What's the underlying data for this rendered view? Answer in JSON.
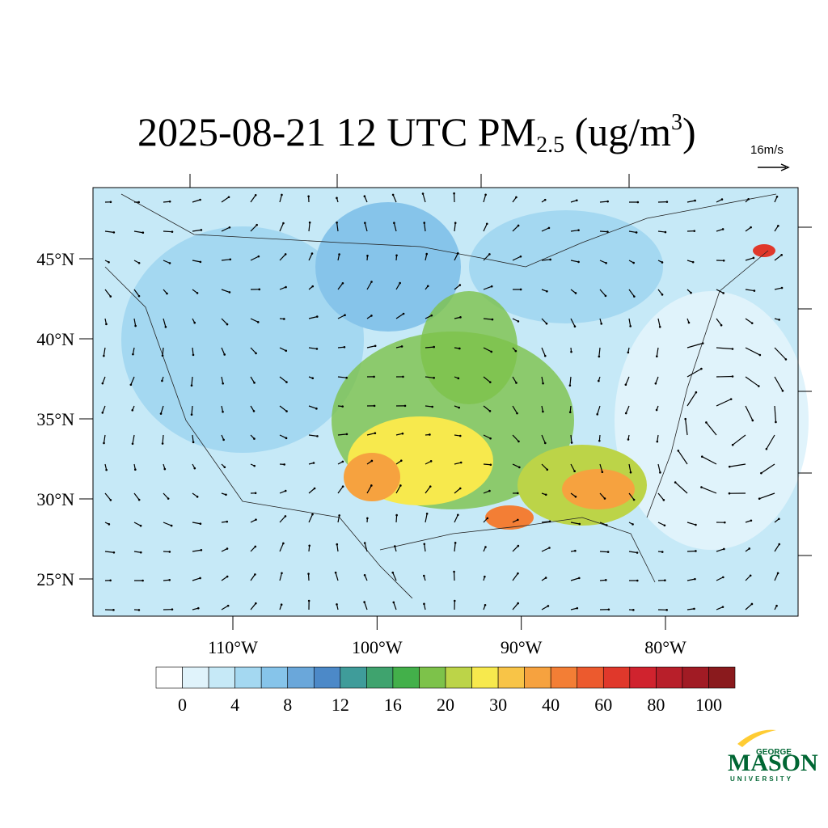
{
  "header": {
    "title": {
      "text": "2025-08-21 12 UTC PM",
      "subscript": "2.5",
      "units_open": " (ug/m",
      "superscript": "3",
      "units_close": ")"
    },
    "reference_vector": "16m/s"
  },
  "map": {
    "lat_ticks": [
      {
        "value": 25,
        "label": "25°N"
      },
      {
        "value": 30,
        "label": "30°N"
      },
      {
        "value": 35,
        "label": "35°N"
      },
      {
        "value": 40,
        "label": "40°N"
      },
      {
        "value": 45,
        "label": "45°N"
      }
    ],
    "lon_ticks": [
      {
        "value": -110,
        "label": "110°W"
      },
      {
        "value": -100,
        "label": "100°W"
      },
      {
        "value": -90,
        "label": "90°W"
      },
      {
        "value": -80,
        "label": "80°W"
      }
    ]
  },
  "colorbar": {
    "colors": [
      "#ffffff",
      "#e0f3fb",
      "#c6e9f7",
      "#a4d8f1",
      "#86c4ea",
      "#6aa7da",
      "#4c89c8",
      "#3f9c9a",
      "#3fa36e",
      "#43b04a",
      "#7dc24a",
      "#bcd448",
      "#f7e94d",
      "#f8c447",
      "#f6a23f",
      "#f37e35",
      "#ec5a2e",
      "#e0382b",
      "#d0232e",
      "#b81f2a",
      "#a11b24",
      "#8a1a1d"
    ],
    "ticks": [
      0,
      4,
      8,
      12,
      16,
      20,
      30,
      40,
      60,
      80,
      100
    ]
  },
  "logo": {
    "top": "GEORGE",
    "main": "MASON",
    "bottom": "UNIVERSITY"
  }
}
